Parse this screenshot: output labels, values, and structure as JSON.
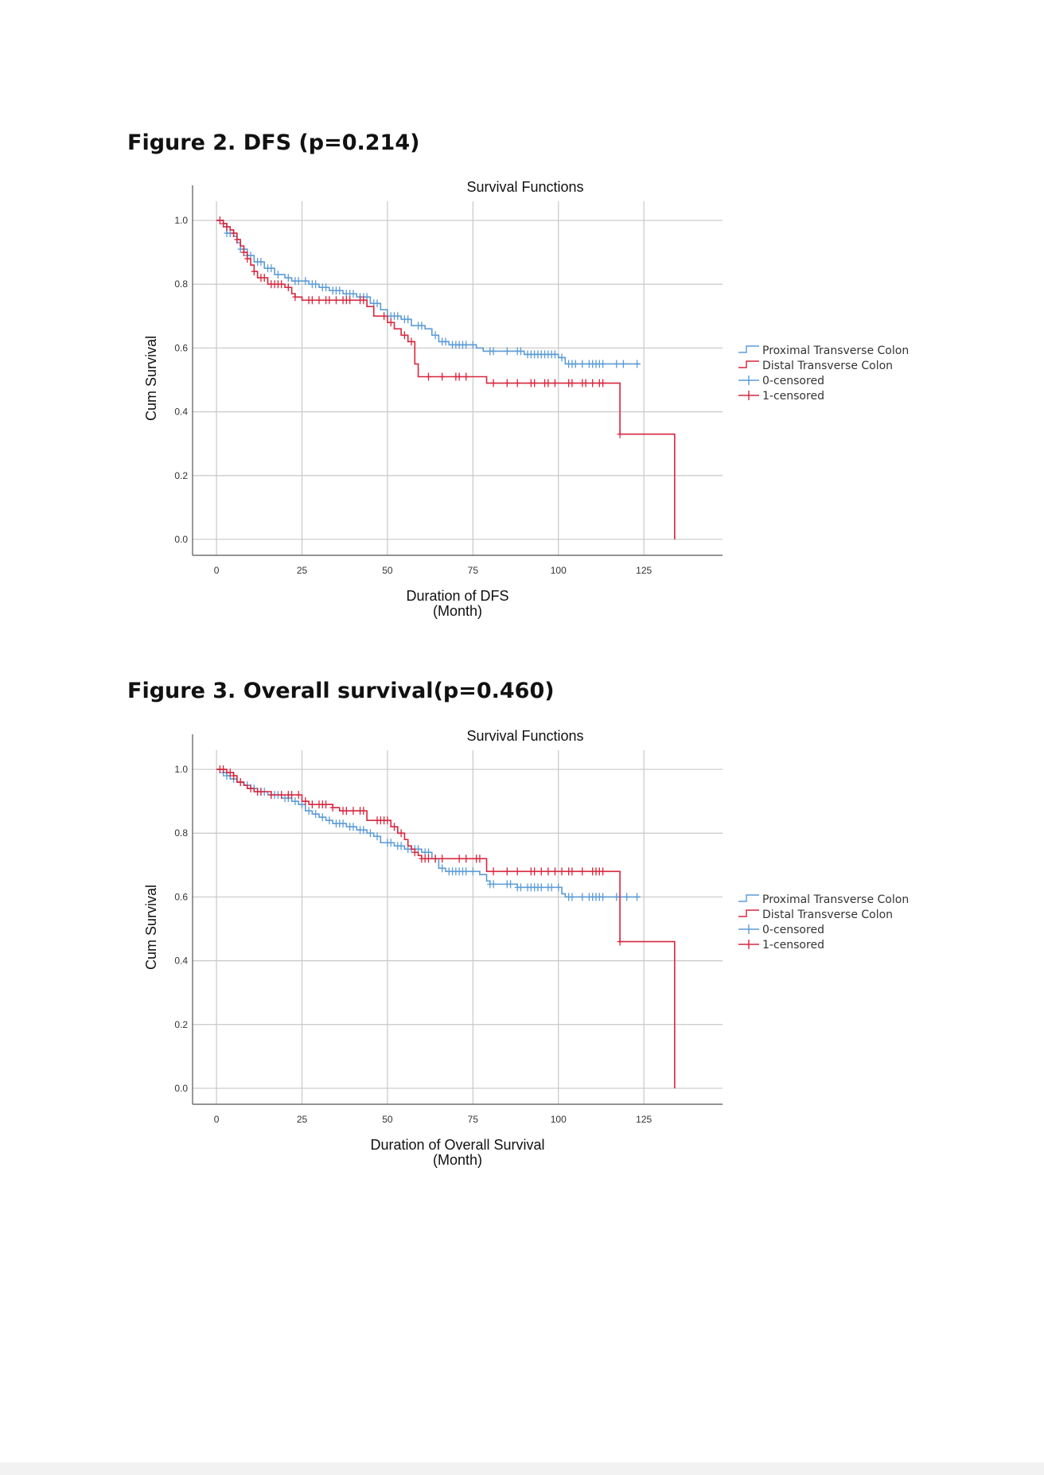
{
  "page": {
    "figure2_title": "Figure 2. DFS (p=0.214)",
    "figure3_title": "Figure 3. Overall survival(p=0.460)"
  },
  "colors": {
    "proximal": "#5b9bd5",
    "distal": "#d7263d"
  },
  "chart_data": [
    {
      "type": "line",
      "step": true,
      "title": "Survival Functions",
      "xlabel": "Duration of DFS\n(Month)",
      "ylabel": "Cum Survival",
      "xlim": [
        -7,
        148
      ],
      "ylim": [
        -0.05,
        1.06
      ],
      "xticks": [
        0,
        25,
        50,
        75,
        100,
        125
      ],
      "yticks": [
        0.0,
        0.2,
        0.4,
        0.6,
        0.8,
        1.0
      ],
      "grid": true,
      "legend_position": "right",
      "legend": [
        "Proximal Transverse Colon",
        "Distal Transverse Colon",
        "0-censored",
        "1-censored"
      ],
      "series": [
        {
          "name": "Proximal Transverse Colon",
          "color": "#5b9bd5",
          "steps": [
            [
              0,
              1.0
            ],
            [
              2,
              0.98
            ],
            [
              3,
              0.96
            ],
            [
              5,
              0.95
            ],
            [
              6,
              0.93
            ],
            [
              7,
              0.91
            ],
            [
              9,
              0.89
            ],
            [
              11,
              0.87
            ],
            [
              14,
              0.85
            ],
            [
              17,
              0.83
            ],
            [
              20,
              0.82
            ],
            [
              22,
              0.81
            ],
            [
              27,
              0.8
            ],
            [
              30,
              0.79
            ],
            [
              33,
              0.78
            ],
            [
              37,
              0.77
            ],
            [
              41,
              0.76
            ],
            [
              45,
              0.74
            ],
            [
              48,
              0.72
            ],
            [
              50,
              0.7
            ],
            [
              54,
              0.69
            ],
            [
              57,
              0.67
            ],
            [
              61,
              0.66
            ],
            [
              63,
              0.64
            ],
            [
              65,
              0.62
            ],
            [
              68,
              0.61
            ],
            [
              76,
              0.6
            ],
            [
              78,
              0.59
            ],
            [
              90,
              0.58
            ],
            [
              100,
              0.57
            ],
            [
              102,
              0.55
            ],
            [
              124,
              0.55
            ]
          ],
          "censored": [
            3,
            4,
            7,
            9,
            10,
            12,
            13,
            15,
            16,
            18,
            21,
            23,
            24,
            26,
            28,
            29,
            31,
            32,
            34,
            35,
            36,
            38,
            39,
            40,
            42,
            43,
            44,
            46,
            47,
            51,
            52,
            53,
            55,
            56,
            59,
            60,
            64,
            66,
            67,
            69,
            70,
            71,
            72,
            73,
            75,
            80,
            81,
            85,
            88,
            89,
            91,
            92,
            93,
            94,
            95,
            96,
            97,
            98,
            99,
            101,
            103,
            104,
            105,
            107,
            109,
            110,
            111,
            112,
            113,
            117,
            119,
            123
          ]
        },
        {
          "name": "Distal Transverse Colon",
          "color": "#d7263d",
          "steps": [
            [
              0,
              1.0
            ],
            [
              2,
              0.99
            ],
            [
              3,
              0.98
            ],
            [
              4,
              0.97
            ],
            [
              5,
              0.96
            ],
            [
              6,
              0.94
            ],
            [
              7,
              0.92
            ],
            [
              8,
              0.9
            ],
            [
              9,
              0.88
            ],
            [
              10,
              0.86
            ],
            [
              11,
              0.84
            ],
            [
              12,
              0.82
            ],
            [
              15,
              0.8
            ],
            [
              20,
              0.79
            ],
            [
              22,
              0.77
            ],
            [
              23,
              0.76
            ],
            [
              25,
              0.75
            ],
            [
              44,
              0.73
            ],
            [
              46,
              0.7
            ],
            [
              50,
              0.68
            ],
            [
              52,
              0.66
            ],
            [
              54,
              0.64
            ],
            [
              56,
              0.62
            ],
            [
              58,
              0.55
            ],
            [
              59,
              0.51
            ],
            [
              79,
              0.49
            ],
            [
              118,
              0.33
            ],
            [
              134,
              0.0
            ]
          ],
          "censored": [
            1,
            2,
            3,
            5,
            6,
            8,
            9,
            11,
            13,
            14,
            16,
            17,
            18,
            19,
            21,
            23,
            27,
            28,
            30,
            32,
            33,
            35,
            37,
            38,
            39,
            42,
            43,
            49,
            51,
            55,
            57,
            62,
            66,
            70,
            71,
            73,
            81,
            85,
            88,
            92,
            93,
            96,
            97,
            99,
            103,
            104,
            107,
            108,
            110,
            112,
            113,
            118
          ]
        }
      ]
    },
    {
      "type": "line",
      "step": true,
      "title": "Survival Functions",
      "xlabel": "Duration of Overall Survival\n(Month)",
      "ylabel": "Cum Survival",
      "xlim": [
        -7,
        148
      ],
      "ylim": [
        -0.05,
        1.06
      ],
      "xticks": [
        0,
        25,
        50,
        75,
        100,
        125
      ],
      "yticks": [
        0.0,
        0.2,
        0.4,
        0.6,
        0.8,
        1.0
      ],
      "grid": true,
      "legend_position": "right",
      "legend": [
        "Proximal Transverse Colon",
        "Distal Transverse Colon",
        "0-censored",
        "1-censored"
      ],
      "series": [
        {
          "name": "Proximal Transverse Colon",
          "color": "#5b9bd5",
          "steps": [
            [
              0,
              1.0
            ],
            [
              2,
              0.99
            ],
            [
              3,
              0.98
            ],
            [
              4,
              0.97
            ],
            [
              6,
              0.96
            ],
            [
              8,
              0.95
            ],
            [
              10,
              0.94
            ],
            [
              12,
              0.93
            ],
            [
              15,
              0.92
            ],
            [
              19,
              0.91
            ],
            [
              22,
              0.9
            ],
            [
              24,
              0.89
            ],
            [
              26,
              0.87
            ],
            [
              28,
              0.86
            ],
            [
              30,
              0.85
            ],
            [
              32,
              0.84
            ],
            [
              34,
              0.83
            ],
            [
              38,
              0.82
            ],
            [
              41,
              0.81
            ],
            [
              44,
              0.8
            ],
            [
              46,
              0.79
            ],
            [
              48,
              0.77
            ],
            [
              52,
              0.76
            ],
            [
              55,
              0.75
            ],
            [
              60,
              0.74
            ],
            [
              63,
              0.72
            ],
            [
              65,
              0.69
            ],
            [
              67,
              0.68
            ],
            [
              77,
              0.67
            ],
            [
              79,
              0.65
            ],
            [
              80,
              0.64
            ],
            [
              87,
              0.64
            ],
            [
              88,
              0.63
            ],
            [
              99,
              0.63
            ],
            [
              101,
              0.61
            ],
            [
              102,
              0.6
            ],
            [
              124,
              0.6
            ]
          ],
          "censored": [
            2,
            3,
            5,
            7,
            9,
            11,
            13,
            14,
            16,
            17,
            18,
            20,
            21,
            23,
            25,
            27,
            29,
            31,
            33,
            35,
            36,
            37,
            39,
            40,
            42,
            43,
            45,
            47,
            50,
            51,
            53,
            54,
            56,
            57,
            58,
            59,
            61,
            62,
            64,
            66,
            68,
            69,
            70,
            71,
            72,
            73,
            75,
            80,
            81,
            85,
            86,
            88,
            89,
            91,
            92,
            93,
            94,
            95,
            97,
            98,
            100,
            103,
            104,
            107,
            109,
            110,
            111,
            112,
            113,
            117,
            120,
            123
          ]
        },
        {
          "name": "Distal Transverse Colon",
          "color": "#d7263d",
          "steps": [
            [
              0,
              1.0
            ],
            [
              3,
              0.99
            ],
            [
              5,
              0.98
            ],
            [
              6,
              0.96
            ],
            [
              8,
              0.95
            ],
            [
              9,
              0.94
            ],
            [
              11,
              0.93
            ],
            [
              16,
              0.92
            ],
            [
              25,
              0.9
            ],
            [
              27,
              0.89
            ],
            [
              34,
              0.88
            ],
            [
              36,
              0.87
            ],
            [
              44,
              0.84
            ],
            [
              51,
              0.82
            ],
            [
              53,
              0.8
            ],
            [
              55,
              0.78
            ],
            [
              56,
              0.76
            ],
            [
              57,
              0.75
            ],
            [
              58,
              0.74
            ],
            [
              59,
              0.73
            ],
            [
              60,
              0.72
            ],
            [
              70,
              0.72
            ],
            [
              79,
              0.68
            ],
            [
              118,
              0.46
            ],
            [
              134,
              0.0
            ]
          ],
          "censored": [
            1,
            2,
            4,
            5,
            7,
            10,
            12,
            13,
            16,
            19,
            21,
            22,
            24,
            26,
            28,
            30,
            31,
            32,
            34,
            37,
            38,
            40,
            42,
            43,
            47,
            48,
            49,
            50,
            52,
            54,
            58,
            60,
            61,
            62,
            64,
            66,
            71,
            73,
            76,
            77,
            81,
            85,
            88,
            92,
            93,
            95,
            97,
            99,
            101,
            103,
            104,
            107,
            110,
            111,
            112,
            113,
            118
          ]
        }
      ]
    }
  ]
}
